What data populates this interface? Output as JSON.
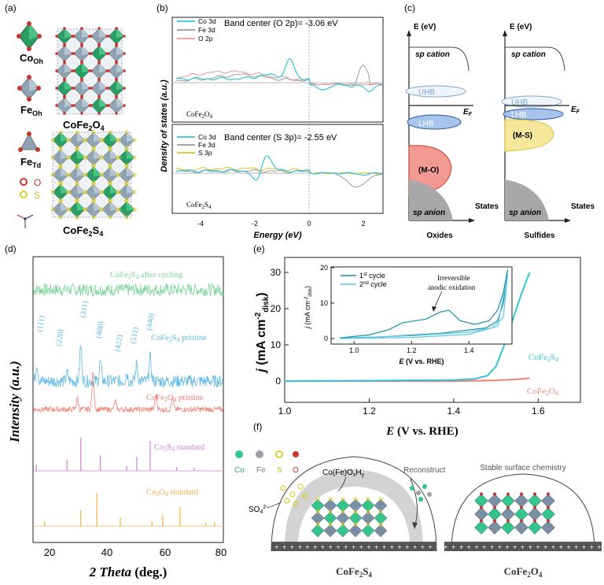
{
  "panels": {
    "a": "(a)",
    "b": "(b)",
    "c": "(c)",
    "d": "(d)",
    "e": "(e)",
    "f": "(f)"
  },
  "panel_a": {
    "legend": {
      "co_oh": "Co",
      "co_oh_sub": "Oh",
      "fe_oh": "Fe",
      "fe_oh_sub": "Oh",
      "fe_td": "Fe",
      "fe_td_sub": "Td",
      "o": "O",
      "s": "S"
    },
    "structure_1": "CoFe2O4",
    "structure_2": "CoFe2S4"
  },
  "panel_b": {
    "ylabel": "Density of states (a.u.)",
    "xlabel": "Energy (eV)",
    "top": {
      "legend": [
        "Co 3d",
        "Fe 3d",
        "O 2p"
      ],
      "band_center": "Band center (O 2p)= -3.06 eV",
      "compound": "CoFe2O4"
    },
    "bottom": {
      "legend": [
        "Co 3d",
        "Fe 3d",
        "S 3p"
      ],
      "band_center": "Band center (S 3p)= -2.55 eV",
      "compound": "CoFe2S4"
    },
    "xticks": [
      "-4",
      "-2",
      "0",
      "2"
    ]
  },
  "panel_c": {
    "axis_label": "E (eV)",
    "states": "States",
    "ef": "E",
    "ef_sub": "F",
    "oxides": {
      "title": "Oxides",
      "sp_cation": "sp cation",
      "uhb": "UHB",
      "lhb": "LHB",
      "mo": "(M-O)",
      "sp_anion": "sp anion"
    },
    "sulfides": {
      "title": "Sulfides",
      "sp_cation": "sp cation",
      "uhb": "UHB",
      "lhb": "LHB",
      "ms": "(M-S)",
      "sp_anion": "sp anion"
    }
  },
  "panel_d": {
    "ylabel": "Intensity (a.u.)",
    "xlabel": "2 Theta (deg.)",
    "xticks": [
      "20",
      "40",
      "60",
      "80"
    ],
    "traces": {
      "after": "CoFe2S4 after cycling",
      "s_pristine": "CoFe2S4 pristine",
      "o_pristine": "CoFe2O4 pristine",
      "co3s4": "Co3S4 standard",
      "co3o4": "Co3O4 standard"
    },
    "peaks": [
      "(111)",
      "(220)",
      "(311)",
      "(400)",
      "(422)",
      "(511)",
      "(440)"
    ],
    "colors": {
      "after": "#7fd49a",
      "s_pristine": "#5fb8e6",
      "o_pristine": "#ef7f73",
      "co3s4": "#d57fd8",
      "co3o4": "#f0b04a"
    }
  },
  "chart_data": {
    "type": "line",
    "title": "",
    "xlabel": "E (V vs. RHE)",
    "ylabel": "j (mA cm-2 disk)",
    "xlim": [
      1.0,
      1.7
    ],
    "ylim": [
      -2,
      32
    ],
    "xticks": [
      "1.0",
      "1.2",
      "1.4",
      "1.6"
    ],
    "yticks": [
      "0",
      "10",
      "20",
      "30"
    ],
    "series": [
      {
        "name": "CoFe2S4",
        "x": [
          1.0,
          1.2,
          1.4,
          1.45,
          1.48,
          1.5,
          1.52,
          1.54,
          1.56,
          1.58
        ],
        "values": [
          0,
          0.1,
          0.3,
          0.6,
          1.5,
          4,
          10,
          17,
          24,
          30
        ]
      },
      {
        "name": "CoFe2O4",
        "x": [
          1.0,
          1.2,
          1.4,
          1.5,
          1.55,
          1.58
        ],
        "values": [
          0,
          0,
          0,
          0.2,
          0.5,
          0.8
        ]
      }
    ],
    "inset": {
      "xlabel": "E (V vs. RHE)",
      "ylabel": "j (mA cm-2 disk)",
      "xticks": [
        "1.0",
        "1.2",
        "1.4"
      ],
      "yticks": [
        "0",
        "10",
        "20"
      ],
      "legend": [
        "1st cycle",
        "2nd cycle"
      ],
      "annotation_1": "Irreversible",
      "annotation_2": "anodic oxidation"
    }
  },
  "panel_f": {
    "label_coooh": "Co(Fe)OxHy",
    "reconstruct": "Reconstruct",
    "stable": "Stable surface chemistry",
    "so4": "SO4 2-",
    "legend": [
      "Co",
      "Fe",
      "S",
      "O"
    ],
    "left_compound": "CoFe2S4",
    "right_compound": "CoFe2O4"
  }
}
